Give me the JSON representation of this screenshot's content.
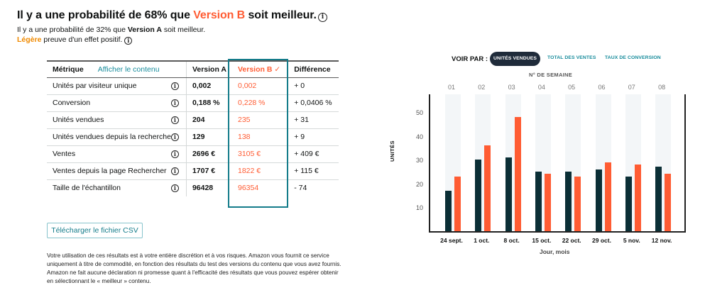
{
  "header": {
    "title_prefix": "Il y a une probabilité de 68% que ",
    "title_accent": "Version B",
    "title_suffix": " soit meilleur.",
    "sub1_prefix": "Il y a une probabilité de 32% que ",
    "sub1_bold": "Version A",
    "sub1_suffix": " soit meilleur.",
    "sub2_accent": "Légère",
    "sub2_suffix": " preuve d'un effet positif.",
    "info_glyph": "i"
  },
  "colors": {
    "version_a": "#0b2f36",
    "version_b": "#ff5c33",
    "highlight_box": "#147c8a",
    "link": "#168b9b",
    "light_evidence": "#f08a00",
    "active_tab_bg": "#1f2b3a",
    "band": "#f3f6f8"
  },
  "table": {
    "headers": {
      "metric": "Métrique",
      "show_content": "Afficher le contenu",
      "version_a": "Version A",
      "version_b": "Version B",
      "version_b_check": "✓",
      "difference": "Différence"
    },
    "rows": [
      {
        "metric": "Unités par visiteur unique",
        "a": "0,002",
        "b": "0,002",
        "diff": "+ 0"
      },
      {
        "metric": "Conversion",
        "a": "0,188 %",
        "b": "0,228 %",
        "diff": "+ 0,0406 %"
      },
      {
        "metric": "Unités vendues",
        "a": "204",
        "b": "235",
        "diff": "+ 31"
      },
      {
        "metric": "Unités vendues depuis la recherche",
        "a": "129",
        "b": "138",
        "diff": "+ 9"
      },
      {
        "metric": "Ventes",
        "a": "2696 €",
        "b": "3105 €",
        "diff": "+ 409 €"
      },
      {
        "metric": "Ventes depuis la page Rechercher",
        "a": "1707 €",
        "b": "1822 €",
        "diff": "+ 115 €"
      },
      {
        "metric": "Taille de l'échantillon",
        "a": "96428",
        "b": "96354",
        "diff": "- 74"
      }
    ]
  },
  "actions": {
    "download_csv": "Télécharger le fichier CSV"
  },
  "disclaimer": "Votre utilisation de ces résultats est à votre entière discrétion et à vos risques. Amazon vous fournit ce service uniquement à titre de commodité, en fonction des résultats du test des versions du contenu que vous avez fournis. Amazon ne fait aucune déclaration ni promesse quant à l'efficacité des résultats que vous pouvez espérer obtenir en sélectionnant le « meilleur » contenu.",
  "chart_controls": {
    "view_by_label": "VOIR PAR :",
    "tabs": [
      {
        "label": "UNITÉS VENDUES",
        "active": true
      },
      {
        "label": "TOTAL DES VENTES",
        "active": false
      },
      {
        "label": "TAUX DE CONVERSION",
        "active": false
      }
    ]
  },
  "chart_data": {
    "type": "bar",
    "title": "",
    "top_axis_label": "N° DE SEMAINE",
    "week_labels": [
      "01",
      "02",
      "03",
      "04",
      "05",
      "06",
      "07",
      "08"
    ],
    "categories": [
      "24 sept.",
      "1 oct.",
      "8 oct.",
      "15 oct.",
      "22 oct.",
      "29 oct.",
      "5 nov.",
      "12 nov."
    ],
    "series": [
      {
        "name": "Version A",
        "color": "#0b2f36",
        "values": [
          17,
          30,
          31,
          25,
          25,
          26,
          23,
          27
        ]
      },
      {
        "name": "Version B",
        "color": "#ff5c33",
        "values": [
          23,
          36,
          48,
          24,
          23,
          29,
          28,
          24
        ]
      }
    ],
    "xlabel": "Jour, mois",
    "ylabel": "UNITÉS",
    "yticks": [
      10,
      20,
      30,
      40,
      50
    ],
    "ylim": [
      0,
      58
    ],
    "grid": false,
    "legend": "none"
  }
}
